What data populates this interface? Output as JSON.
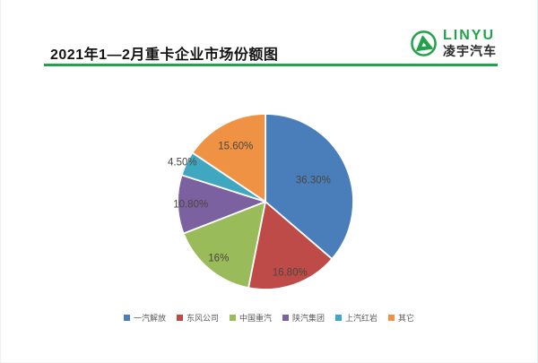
{
  "page": {
    "title": "2021年1—2月重卡企业市场份额图"
  },
  "logo": {
    "name": "LINYU",
    "subtitle": "凌宇汽车",
    "green": "#21a24b"
  },
  "divider_color": "#21a24b",
  "chart_data": {
    "type": "pie",
    "title": "2021年1—2月重卡企业市场份额图",
    "start_angle_deg": 0,
    "direction": "clockwise",
    "legend_position": "bottom",
    "slice_border_color": "#ffffff",
    "label_color": "#4a473f",
    "label_radius": [
      0.6,
      0.85,
      0.83,
      0.85,
      1.05,
      0.72
    ],
    "series": [
      {
        "name": "一汽解放",
        "value": 36.3,
        "label": "36.30%",
        "color": "#4a7ebb"
      },
      {
        "name": "东风公司",
        "value": 16.8,
        "label": "16.80%",
        "color": "#be4b48"
      },
      {
        "name": "中国重汽",
        "value": 16.0,
        "label": "16%",
        "color": "#9abb59"
      },
      {
        "name": "陕汽集团",
        "value": 10.8,
        "label": "10.80%",
        "color": "#7c61a0"
      },
      {
        "name": "上汽红岩",
        "value": 4.5,
        "label": "4.50%",
        "color": "#3fa8c0"
      },
      {
        "name": "其它",
        "value": 15.6,
        "label": "15.60%",
        "color": "#f09243"
      }
    ]
  }
}
